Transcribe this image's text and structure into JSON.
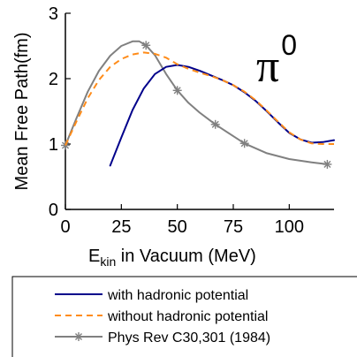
{
  "chart_data": {
    "type": "line",
    "title": "",
    "annotation": {
      "symbol": "π",
      "superscript": "0"
    },
    "xlabel": {
      "main": "E",
      "sub": "kin",
      "rest": " in Vacuum (MeV)"
    },
    "ylabel": "Mean Free Path(fm)",
    "xlim": [
      0,
      120
    ],
    "ylim": [
      0,
      3
    ],
    "xticks": [
      0,
      25,
      50,
      75,
      100
    ],
    "yticks": [
      0,
      1,
      2,
      3
    ],
    "grid": false,
    "legend_placement": "bottom",
    "series": [
      {
        "name": "with hadronic potential",
        "color": "#00008b",
        "style": "solid",
        "x": [
          20,
          25,
          30,
          35,
          40,
          45,
          50,
          55,
          60,
          65,
          70,
          75,
          80,
          85,
          90,
          95,
          100,
          105,
          110,
          115,
          120
        ],
        "y": [
          0.67,
          1.1,
          1.52,
          1.85,
          2.07,
          2.18,
          2.21,
          2.18,
          2.12,
          2.05,
          1.98,
          1.9,
          1.79,
          1.66,
          1.5,
          1.33,
          1.17,
          1.07,
          1.02,
          1.03,
          1.06
        ]
      },
      {
        "name": "without hadronic potential",
        "color": "#ff8c1a",
        "style": "dashed",
        "x": [
          0,
          5,
          10,
          15,
          20,
          25,
          30,
          35,
          40,
          45,
          50,
          55,
          60,
          65,
          70,
          75,
          80,
          85,
          90,
          95,
          100,
          105,
          110,
          115,
          120
        ],
        "y": [
          0.98,
          1.35,
          1.7,
          1.98,
          2.18,
          2.3,
          2.37,
          2.4,
          2.38,
          2.32,
          2.22,
          2.15,
          2.09,
          2.04,
          1.98,
          1.9,
          1.8,
          1.67,
          1.51,
          1.34,
          1.18,
          1.07,
          1.01,
          1.0,
          1.0
        ]
      },
      {
        "name": "Phys Rev C30,301 (1984)",
        "color": "#808080",
        "style": "solid",
        "marker": "asterisk",
        "x": [
          0,
          5,
          10,
          15,
          20,
          25,
          30,
          33,
          36,
          40,
          45,
          50,
          55,
          60,
          67,
          75,
          80,
          90,
          100,
          110,
          117
        ],
        "y": [
          0.98,
          1.4,
          1.8,
          2.12,
          2.35,
          2.5,
          2.57,
          2.57,
          2.51,
          2.36,
          2.07,
          1.82,
          1.63,
          1.48,
          1.3,
          1.12,
          1.01,
          0.86,
          0.77,
          0.72,
          0.69
        ],
        "marker_x": [
          0,
          36,
          50,
          67,
          80,
          117
        ],
        "marker_y": [
          0.98,
          2.51,
          1.82,
          1.3,
          1.01,
          0.69
        ]
      }
    ]
  }
}
